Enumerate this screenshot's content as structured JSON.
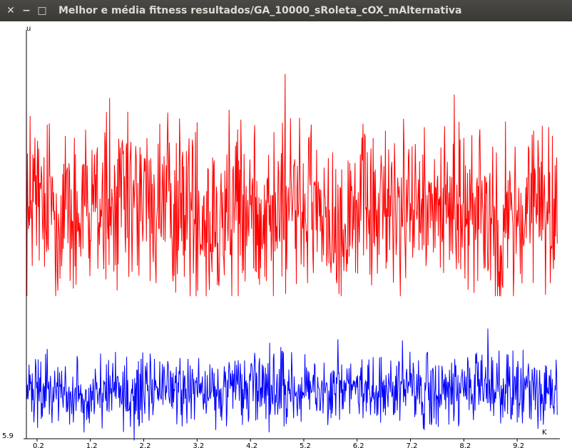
{
  "window": {
    "title": "Melhor e média fitness resultados/GA_10000_sRoleta_cOX_mAlternativa",
    "buttons": [
      {
        "name": "close",
        "glyph": "✕"
      },
      {
        "name": "minimize",
        "glyph": "−"
      },
      {
        "name": "maximize",
        "glyph": "□"
      }
    ]
  },
  "chart_data": {
    "type": "line",
    "title": "",
    "xlabel": "K",
    "ylabel": "u",
    "xlim": [
      0,
      10
    ],
    "ylim": [
      5.9,
      14.5
    ],
    "x_ticks": [
      0.2,
      1.2,
      2.2,
      3.2,
      4.2,
      5.2,
      6.2,
      7.2,
      8.2,
      9.2
    ],
    "x_tick_labels": [
      "0.2",
      "1.2",
      "2.2",
      "3.2",
      "4.2",
      "5.2",
      "6.2",
      "7.2",
      "8.2",
      "9.2"
    ],
    "y_tick_labels": [
      "5.9"
    ],
    "y_ticks": [
      5.9
    ],
    "x_range_points": [
      0,
      9.95
    ],
    "series": [
      {
        "color": "#ff0000",
        "mean": 10.7,
        "amplitude": 1.1,
        "min": 8.9,
        "max": 13.7,
        "x_step": 0.01,
        "first_value": 13.0,
        "last_value": 10.0
      },
      {
        "color": "#0000ff",
        "mean": 6.9,
        "amplitude": 0.45,
        "min": 5.7,
        "max": 8.5,
        "x_step": 0.01,
        "first_value": 7.3,
        "last_value": 6.4
      }
    ],
    "grid": false,
    "legend": "none"
  }
}
